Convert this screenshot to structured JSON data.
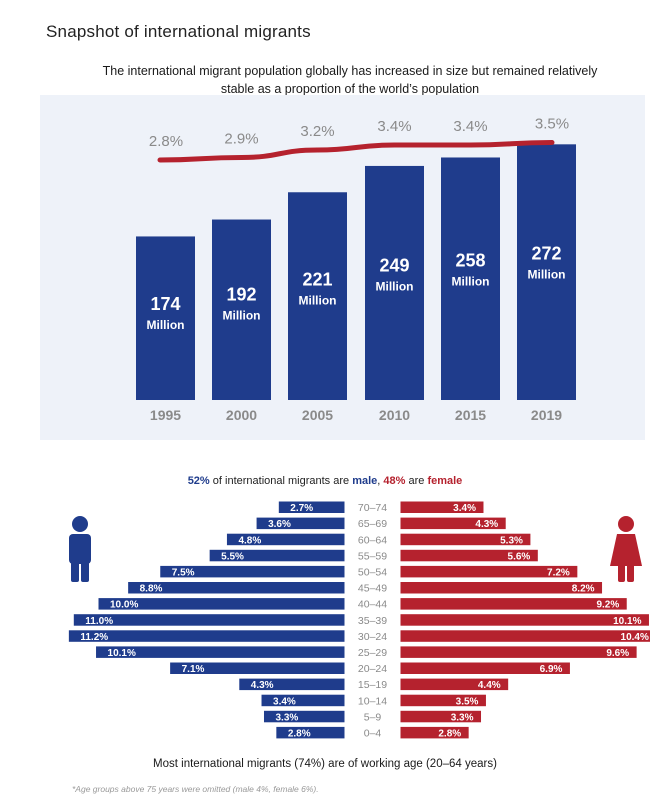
{
  "title": "Snapshot of international migrants",
  "subtitle": "The international migrant population globally has increased in size but remained relatively stable as a proportion of the world’s population",
  "colors": {
    "bar": "#1f3c8c",
    "line": "#b5222e",
    "male": "#1f3c8c",
    "female": "#b5222e",
    "axis_text": "#8a8a8a"
  },
  "chart_data": [
    {
      "type": "bar",
      "categories": [
        "1995",
        "2000",
        "2005",
        "2010",
        "2015",
        "2019"
      ],
      "values": [
        174,
        192,
        221,
        249,
        258,
        272
      ],
      "value_labels": [
        "174",
        "192",
        "221",
        "249",
        "258",
        "272"
      ],
      "unit_label": "Million",
      "ylim": [
        0,
        300
      ],
      "line_series": {
        "values": [
          2.8,
          2.9,
          3.2,
          3.4,
          3.4,
          3.5
        ],
        "labels": [
          "2.8%",
          "2.9%",
          "3.2%",
          "3.4%",
          "3.4%",
          "3.5%"
        ]
      }
    },
    {
      "type": "bar",
      "orientation": "horizontal",
      "categories": [
        "70–74",
        "65–69",
        "60–64",
        "55–59",
        "50–54",
        "45–49",
        "40–44",
        "35–39",
        "30–24",
        "25–29",
        "20–24",
        "15–19",
        "10–14",
        "5–9",
        "0–4"
      ],
      "series": [
        {
          "values": [
            2.7,
            3.6,
            4.8,
            5.5,
            7.5,
            8.8,
            10.0,
            11.0,
            11.2,
            10.1,
            7.1,
            4.3,
            3.4,
            3.3,
            2.8
          ],
          "labels": [
            "2.7%",
            "3.6%",
            "4.8%",
            "5.5%",
            "7.5%",
            "8.8%",
            "10.0%",
            "11.0%",
            "11.2%",
            "10.1%",
            "7.1%",
            "4.3%",
            "3.4%",
            "3.3%",
            "2.8%"
          ]
        },
        {
          "values": [
            3.4,
            4.3,
            5.3,
            5.6,
            7.2,
            8.2,
            9.2,
            10.1,
            10.4,
            9.6,
            6.9,
            4.4,
            3.5,
            3.3,
            2.8
          ],
          "labels": [
            "3.4%",
            "4.3%",
            "5.3%",
            "5.6%",
            "7.2%",
            "8.2%",
            "9.2%",
            "10.1%",
            "10.4%",
            "9.6%",
            "6.9%",
            "4.4%",
            "3.5%",
            "3.3%",
            "2.8%"
          ]
        }
      ]
    }
  ],
  "gender": {
    "male_pct": "52%",
    "text_a": " of international migrants are ",
    "male_word": "male",
    "comma": ", ",
    "female_pct": "48%",
    "text_b": " are ",
    "female_word": "female"
  },
  "working_age_note": "Most international migrants (74%) are of working age (20–64 years)",
  "footnote": "*Age groups above 75 years were omitted (male 4%, female 6%)."
}
